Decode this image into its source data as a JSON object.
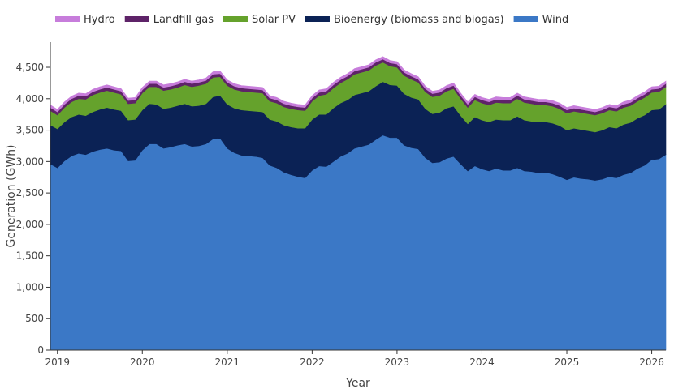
{
  "chart_data": {
    "type": "area",
    "stacked": true,
    "xlabel": "Year",
    "ylabel": "Generation (GWh)",
    "x_start": "2018-12",
    "x_end": "2026-03",
    "x": [
      "2018-12",
      "2019-01",
      "2019-02",
      "2019-03",
      "2019-04",
      "2019-05",
      "2019-06",
      "2019-07",
      "2019-08",
      "2019-09",
      "2019-10",
      "2019-11",
      "2019-12",
      "2020-01",
      "2020-02",
      "2020-03",
      "2020-04",
      "2020-05",
      "2020-06",
      "2020-07",
      "2020-08",
      "2020-09",
      "2020-10",
      "2020-11",
      "2020-12",
      "2021-01",
      "2021-02",
      "2021-03",
      "2021-04",
      "2021-05",
      "2021-06",
      "2021-07",
      "2021-08",
      "2021-09",
      "2021-10",
      "2021-11",
      "2021-12",
      "2022-01",
      "2022-02",
      "2022-03",
      "2022-04",
      "2022-05",
      "2022-06",
      "2022-07",
      "2022-08",
      "2022-09",
      "2022-10",
      "2022-11",
      "2022-12",
      "2023-01",
      "2023-02",
      "2023-03",
      "2023-04",
      "2023-05",
      "2023-06",
      "2023-07",
      "2023-08",
      "2023-09",
      "2023-10",
      "2023-11",
      "2023-12",
      "2024-01",
      "2024-02",
      "2024-03",
      "2024-04",
      "2024-05",
      "2024-06",
      "2024-07",
      "2024-08",
      "2024-09",
      "2024-10",
      "2024-11",
      "2024-12",
      "2025-01",
      "2025-02",
      "2025-03",
      "2025-04",
      "2025-05",
      "2025-06",
      "2025-07",
      "2025-08",
      "2025-09",
      "2025-10",
      "2025-11",
      "2025-12",
      "2026-01",
      "2026-02",
      "2026-03"
    ],
    "x_ticks": [
      {
        "label": "2019",
        "date": "2019-01"
      },
      {
        "label": "2020",
        "date": "2020-01"
      },
      {
        "label": "2021",
        "date": "2021-01"
      },
      {
        "label": "2022",
        "date": "2022-01"
      },
      {
        "label": "2023",
        "date": "2023-01"
      },
      {
        "label": "2024",
        "date": "2024-01"
      },
      {
        "label": "2025",
        "date": "2025-01"
      },
      {
        "label": "2026",
        "date": "2026-01"
      }
    ],
    "ylim": [
      0,
      4900
    ],
    "y_ticks": [
      {
        "value": 0,
        "label": "0"
      },
      {
        "value": 500,
        "label": "500"
      },
      {
        "value": 1000,
        "label": "1,000"
      },
      {
        "value": 1500,
        "label": "1,500"
      },
      {
        "value": 2000,
        "label": "2,000"
      },
      {
        "value": 2500,
        "label": "2,500"
      },
      {
        "value": 3000,
        "label": "3,000"
      },
      {
        "value": 3500,
        "label": "3,500"
      },
      {
        "value": 4000,
        "label": "4,000"
      },
      {
        "value": 4500,
        "label": "4,500"
      }
    ],
    "legend_position": "top",
    "legend": [
      "Hydro",
      "Landfill gas",
      "Solar PV",
      "Bioenergy (biomass and biogas)",
      "Wind"
    ],
    "series": [
      {
        "name": "Wind",
        "color": "#3b78c6",
        "values": [
          2960,
          2900,
          3010,
          3090,
          3130,
          3110,
          3160,
          3190,
          3210,
          3180,
          3170,
          3010,
          3020,
          3180,
          3280,
          3280,
          3210,
          3230,
          3260,
          3280,
          3240,
          3250,
          3280,
          3360,
          3370,
          3210,
          3140,
          3100,
          3090,
          3080,
          3060,
          2940,
          2900,
          2830,
          2790,
          2760,
          2740,
          2860,
          2930,
          2920,
          3000,
          3080,
          3130,
          3210,
          3240,
          3270,
          3350,
          3420,
          3380,
          3380,
          3260,
          3220,
          3200,
          3060,
          2980,
          2990,
          3050,
          3080,
          2960,
          2850,
          2930,
          2880,
          2850,
          2890,
          2860,
          2860,
          2900,
          2850,
          2840,
          2820,
          2830,
          2800,
          2760,
          2710,
          2750,
          2730,
          2720,
          2700,
          2720,
          2760,
          2740,
          2790,
          2820,
          2890,
          2940,
          3030,
          3040,
          3110
        ]
      },
      {
        "name": "Bioenergy (biomass and biogas)",
        "color": "#0b2255",
        "values": [
          620,
          620,
          620,
          620,
          620,
          620,
          630,
          640,
          650,
          650,
          640,
          650,
          650,
          640,
          640,
          630,
          630,
          630,
          630,
          640,
          640,
          640,
          640,
          670,
          680,
          700,
          710,
          720,
          720,
          720,
          730,
          730,
          740,
          750,
          760,
          770,
          790,
          810,
          820,
          830,
          850,
          850,
          850,
          850,
          850,
          850,
          850,
          850,
          840,
          830,
          820,
          800,
          790,
          780,
          780,
          790,
          800,
          800,
          770,
          750,
          780,
          780,
          780,
          780,
          800,
          800,
          820,
          810,
          800,
          810,
          800,
          810,
          810,
          790,
          780,
          780,
          770,
          770,
          780,
          790,
          790,
          800,
          800,
          800,
          800,
          790,
          790,
          800
        ]
      },
      {
        "name": "Solar PV",
        "color": "#65a22c",
        "values": [
          230,
          220,
          230,
          240,
          250,
          260,
          270,
          270,
          270,
          270,
          260,
          260,
          260,
          270,
          270,
          280,
          290,
          290,
          290,
          300,
          310,
          320,
          320,
          310,
          300,
          300,
          300,
          300,
          300,
          300,
          300,
          290,
          290,
          290,
          290,
          290,
          280,
          290,
          300,
          320,
          320,
          320,
          330,
          330,
          330,
          330,
          330,
          310,
          300,
          290,
          290,
          290,
          270,
          270,
          270,
          270,
          270,
          280,
          270,
          260,
          270,
          270,
          270,
          270,
          270,
          270,
          280,
          280,
          280,
          270,
          270,
          270,
          270,
          270,
          270,
          270,
          270,
          270,
          270,
          270,
          270,
          270,
          270,
          270,
          280,
          280,
          280,
          280
        ]
      },
      {
        "name": "Landfill gas",
        "color": "#5e2368",
        "values": [
          50,
          50,
          50,
          50,
          50,
          50,
          50,
          50,
          50,
          50,
          50,
          50,
          50,
          50,
          50,
          50,
          50,
          50,
          50,
          50,
          50,
          50,
          50,
          50,
          50,
          50,
          50,
          50,
          50,
          50,
          50,
          50,
          50,
          50,
          50,
          50,
          50,
          50,
          50,
          50,
          50,
          50,
          50,
          50,
          50,
          50,
          50,
          50,
          50,
          50,
          50,
          50,
          50,
          50,
          50,
          50,
          50,
          50,
          50,
          50,
          50,
          50,
          50,
          50,
          50,
          50,
          50,
          50,
          50,
          50,
          50,
          50,
          50,
          50,
          50,
          50,
          50,
          50,
          50,
          50,
          50,
          50,
          50,
          50,
          50,
          50,
          50,
          50
        ]
      },
      {
        "name": "Hydro",
        "color": "#c77ddb",
        "values": [
          40,
          40,
          40,
          40,
          40,
          40,
          40,
          40,
          40,
          40,
          40,
          40,
          40,
          40,
          40,
          40,
          40,
          40,
          40,
          40,
          40,
          40,
          40,
          40,
          40,
          40,
          40,
          40,
          40,
          40,
          40,
          40,
          40,
          40,
          40,
          40,
          40,
          40,
          40,
          40,
          40,
          40,
          40,
          40,
          40,
          40,
          40,
          40,
          40,
          40,
          40,
          40,
          40,
          40,
          40,
          40,
          40,
          40,
          40,
          40,
          40,
          40,
          40,
          40,
          40,
          40,
          40,
          40,
          40,
          40,
          40,
          40,
          40,
          40,
          40,
          40,
          40,
          40,
          40,
          40,
          40,
          40,
          40,
          40,
          40,
          40,
          40,
          40
        ]
      }
    ],
    "legend_colors": {
      "Hydro": "#c77ddb",
      "Landfill gas": "#5e2368",
      "Solar PV": "#65a22c",
      "Bioenergy (biomass and biogas)": "#0b2255",
      "Wind": "#3b78c6"
    },
    "grid": false
  }
}
